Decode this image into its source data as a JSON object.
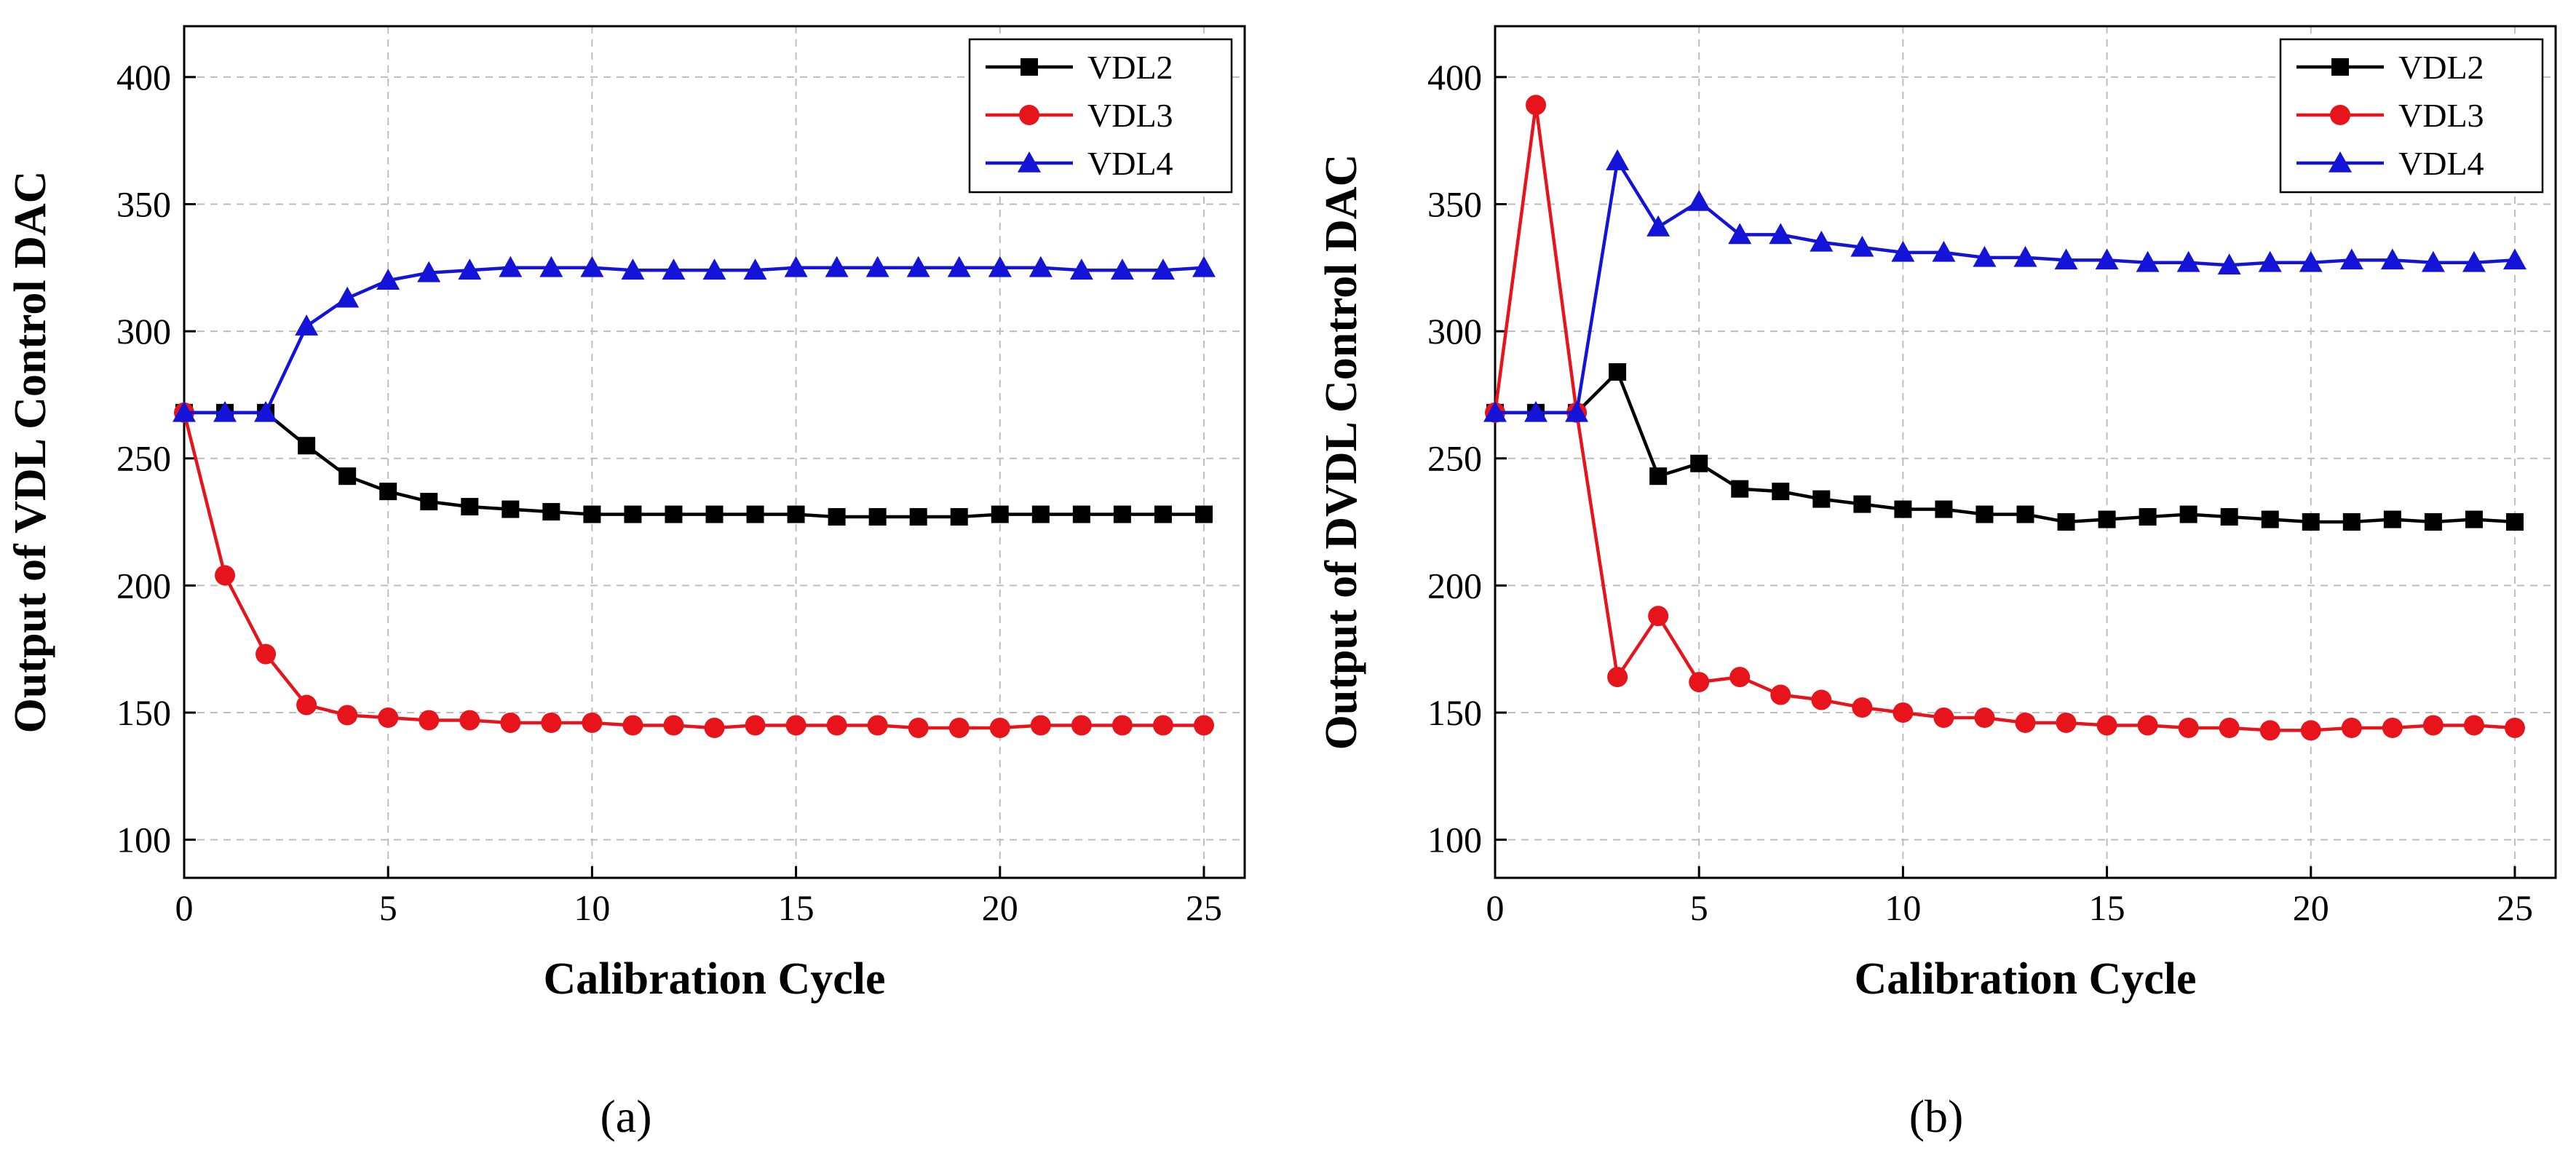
{
  "chart_data": [
    {
      "id": "a",
      "type": "line",
      "caption": "(a)",
      "xlabel": "Calibration Cycle",
      "ylabel": "Output of VDL Control DAC",
      "xlim": [
        0,
        26
      ],
      "ylim": [
        85,
        420
      ],
      "xticks": [
        0,
        5,
        10,
        15,
        20,
        25
      ],
      "yticks": [
        100,
        150,
        200,
        250,
        300,
        350,
        400
      ],
      "grid": true,
      "legend_position": "top-right",
      "x": [
        0,
        1,
        2,
        3,
        4,
        5,
        6,
        7,
        8,
        9,
        10,
        11,
        12,
        13,
        14,
        15,
        16,
        17,
        18,
        19,
        20,
        21,
        22,
        23,
        24,
        25
      ],
      "series": [
        {
          "name": "VDL2",
          "color": "#000000",
          "marker": "square",
          "values": [
            268,
            268,
            268,
            255,
            243,
            237,
            233,
            231,
            230,
            229,
            228,
            228,
            228,
            228,
            228,
            228,
            227,
            227,
            227,
            227,
            228,
            228,
            228,
            228,
            228,
            228
          ]
        },
        {
          "name": "VDL3",
          "color": "#e8141b",
          "marker": "circle",
          "values": [
            268,
            204,
            173,
            153,
            149,
            148,
            147,
            147,
            146,
            146,
            146,
            145,
            145,
            144,
            145,
            145,
            145,
            145,
            144,
            144,
            144,
            145,
            145,
            145,
            145,
            145
          ]
        },
        {
          "name": "VDL4",
          "color": "#1414d8",
          "marker": "triangle",
          "values": [
            268,
            268,
            268,
            302,
            313,
            320,
            323,
            324,
            325,
            325,
            325,
            324,
            324,
            324,
            324,
            325,
            325,
            325,
            325,
            325,
            325,
            325,
            324,
            324,
            324,
            325
          ]
        }
      ]
    },
    {
      "id": "b",
      "type": "line",
      "caption": "(b)",
      "xlabel": "Calibration Cycle",
      "ylabel": "Output of DVDL Control DAC",
      "xlim": [
        0,
        26
      ],
      "ylim": [
        85,
        420
      ],
      "xticks": [
        0,
        5,
        10,
        15,
        20,
        25
      ],
      "yticks": [
        100,
        150,
        200,
        250,
        300,
        350,
        400
      ],
      "grid": true,
      "legend_position": "top-right",
      "x": [
        0,
        1,
        2,
        3,
        4,
        5,
        6,
        7,
        8,
        9,
        10,
        11,
        12,
        13,
        14,
        15,
        16,
        17,
        18,
        19,
        20,
        21,
        22,
        23,
        24,
        25
      ],
      "series": [
        {
          "name": "VDL2",
          "color": "#000000",
          "marker": "square",
          "values": [
            268,
            268,
            268,
            284,
            243,
            248,
            238,
            237,
            234,
            232,
            230,
            230,
            228,
            228,
            225,
            226,
            227,
            228,
            227,
            226,
            225,
            225,
            226,
            225,
            226,
            225
          ]
        },
        {
          "name": "VDL3",
          "color": "#e8141b",
          "marker": "circle",
          "values": [
            268,
            389,
            268,
            164,
            188,
            162,
            164,
            157,
            155,
            152,
            150,
            148,
            148,
            146,
            146,
            145,
            145,
            144,
            144,
            143,
            143,
            144,
            144,
            145,
            145,
            144
          ]
        },
        {
          "name": "VDL4",
          "color": "#1414d8",
          "marker": "triangle",
          "values": [
            268,
            268,
            268,
            367,
            341,
            351,
            338,
            338,
            335,
            333,
            331,
            331,
            329,
            329,
            328,
            328,
            327,
            327,
            326,
            327,
            327,
            328,
            328,
            327,
            327,
            328
          ]
        }
      ]
    }
  ]
}
